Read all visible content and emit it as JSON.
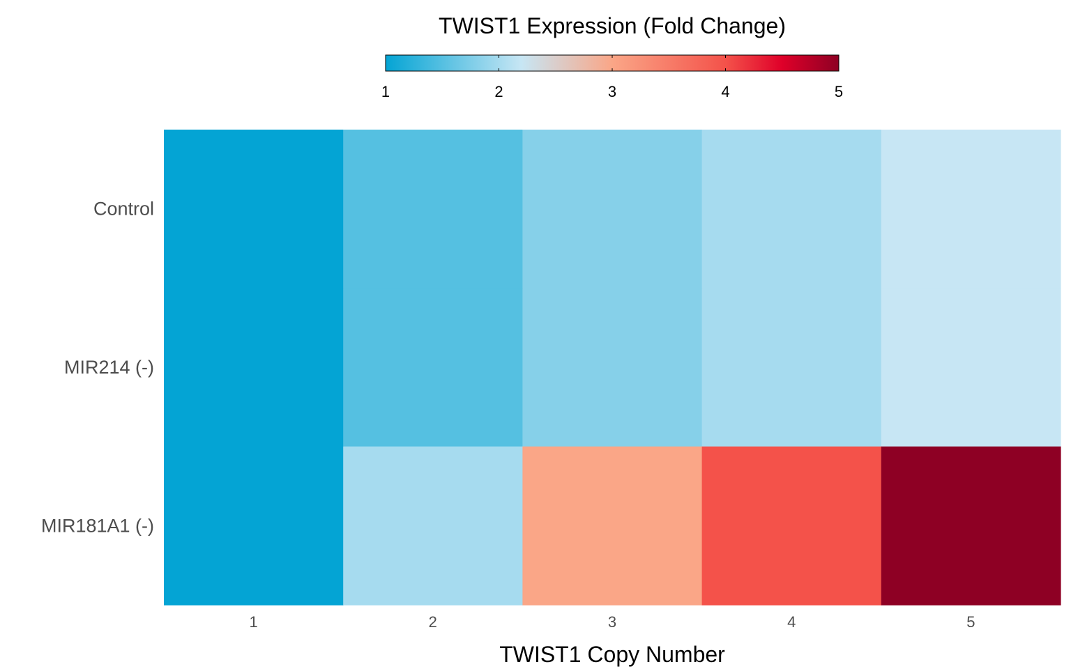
{
  "chart_data": {
    "type": "heatmap",
    "title": "",
    "xlabel": "TWIST1 Copy Number",
    "ylabel": "",
    "x": [
      "1",
      "2",
      "3",
      "4",
      "5"
    ],
    "y": [
      "Control",
      "MIR214 (-)",
      "MIR181A1 (-)"
    ],
    "values": [
      [
        1.0,
        1.5,
        1.8,
        2.0,
        2.2
      ],
      [
        1.0,
        1.5,
        1.8,
        2.0,
        2.2
      ],
      [
        1.0,
        2.0,
        3.0,
        4.0,
        5.0
      ]
    ],
    "legend": {
      "title": "TWIST1 Expression (Fold Change)",
      "position": "top",
      "range": [
        1,
        5
      ],
      "ticks": [
        "1",
        "2",
        "3",
        "4",
        "5"
      ],
      "colors": [
        "#04A4D4",
        "#C7E6F4",
        "#FAA687",
        "#F4524A",
        "#DF0029",
        "#8E0024"
      ],
      "color_stops": [
        1.0,
        2.2,
        3.0,
        4.0,
        4.5,
        5.0
      ]
    },
    "grid": false
  }
}
